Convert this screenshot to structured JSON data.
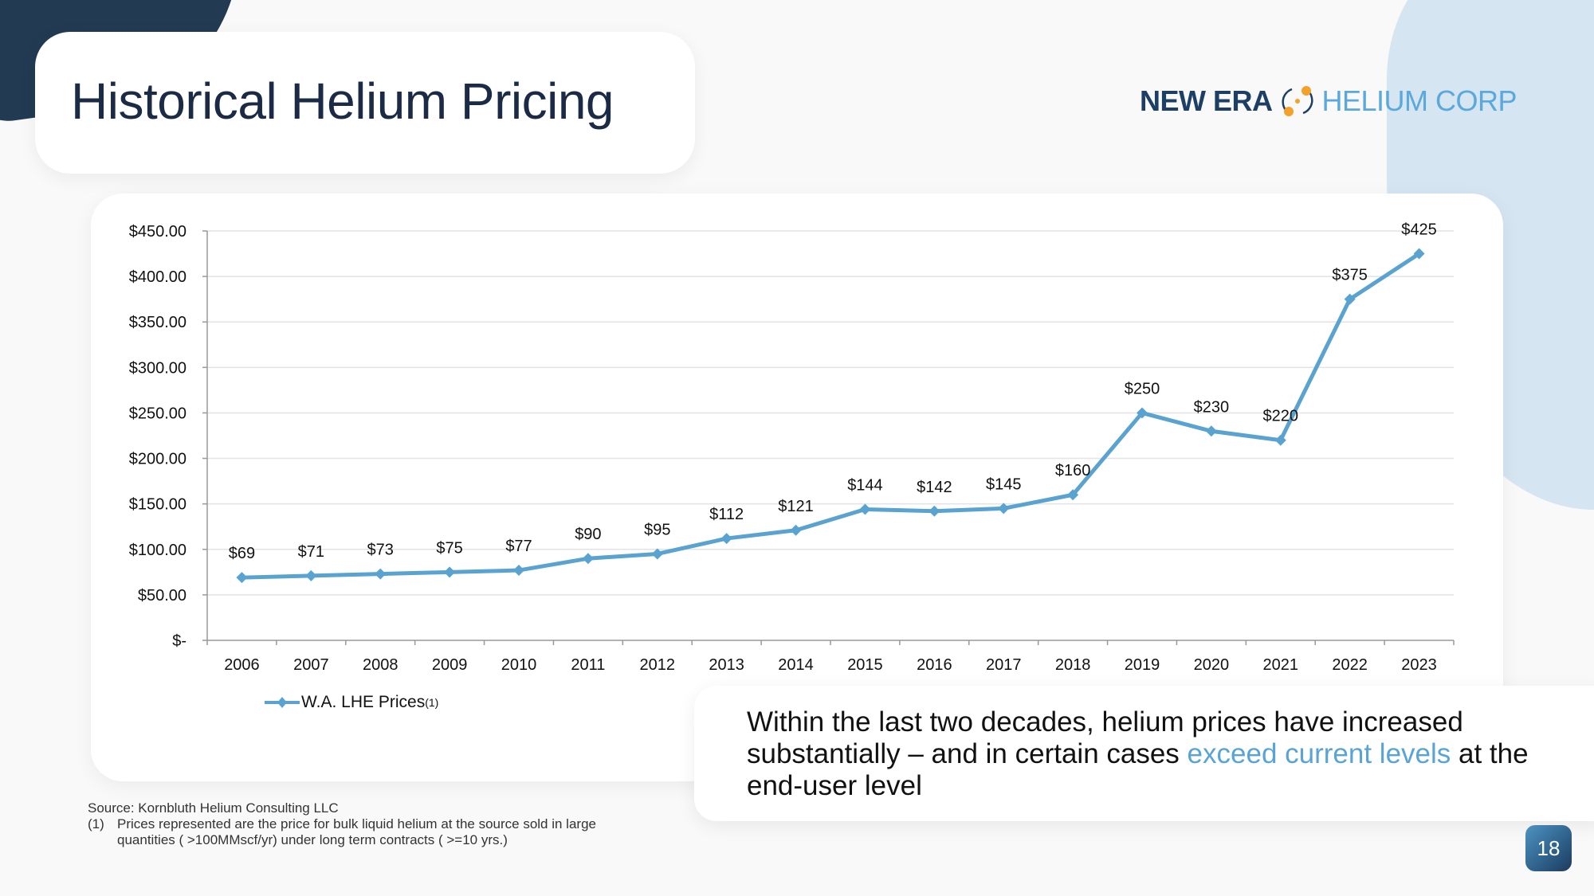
{
  "title": "Historical Helium Pricing",
  "logo": {
    "part1": "NEW ERA",
    "part2": "HELIUM CORP",
    "icon": "atom-orbit-icon",
    "colors": {
      "dark": "#1d3f66",
      "light": "#5aa8dc",
      "orange": "#f2a12b"
    }
  },
  "chart_data": {
    "type": "line",
    "title": "",
    "xlabel": "",
    "ylabel": "",
    "categories": [
      "2006",
      "2007",
      "2008",
      "2009",
      "2010",
      "2011",
      "2012",
      "2013",
      "2014",
      "2015",
      "2016",
      "2017",
      "2018",
      "2019",
      "2020",
      "2021",
      "2022",
      "2023"
    ],
    "series": [
      {
        "name": "W.A. LHE Prices",
        "name_superscript": "(1)",
        "color": "#5aa3d0",
        "marker": "diamond",
        "values": [
          69,
          71,
          73,
          75,
          77,
          90,
          95,
          112,
          121,
          144,
          142,
          145,
          160,
          250,
          230,
          220,
          375,
          425
        ],
        "data_labels": [
          "$69",
          "$71",
          "$73",
          "$75",
          "$77",
          "$90",
          "$95",
          "$112",
          "$121",
          "$144",
          "$142",
          "$145",
          "$160",
          "$250",
          "$230",
          "$220",
          "$375",
          "$425"
        ]
      }
    ],
    "ylim": [
      0,
      450
    ],
    "yticks": [
      0,
      50,
      100,
      150,
      200,
      250,
      300,
      350,
      400,
      450
    ],
    "ytick_labels": [
      "$-",
      "$50.00",
      "$100.00",
      "$150.00",
      "$200.00",
      "$250.00",
      "$300.00",
      "$350.00",
      "$400.00",
      "$450.00"
    ],
    "grid": true,
    "legend_position": "bottom-left"
  },
  "legend": {
    "label": "W.A. LHE Prices",
    "sup": "(1)"
  },
  "callout": {
    "text_before": "Within the last two decades, helium prices have increased substantially – and in certain cases ",
    "text_highlight": "exceed current levels",
    "text_after": " at the end-user level",
    "highlight_color": "#5aa3d6"
  },
  "footnote": {
    "source": "Source: Kornbluth Helium Consulting LLC",
    "note_num": "(1)",
    "note_line1": "Prices represented are the price for bulk liquid helium at the source sold in large",
    "note_line2": "quantities ( >100MMscf/yr) under long term contracts ( >=10 yrs.)"
  },
  "page_number": "18"
}
